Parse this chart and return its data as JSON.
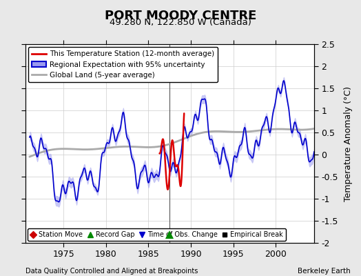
{
  "title": "PORT MOODY CENTRE",
  "subtitle": "49.280 N, 122.850 W (Canada)",
  "ylabel": "Temperature Anomaly (°C)",
  "xlabel_bottom_left": "Data Quality Controlled and Aligned at Breakpoints",
  "xlabel_bottom_right": "Berkeley Earth",
  "ylim": [
    -2.0,
    2.5
  ],
  "xlim": [
    1970.5,
    2004.5
  ],
  "xticks": [
    1975,
    1980,
    1985,
    1990,
    1995,
    2000
  ],
  "yticks": [
    -2.0,
    -1.5,
    -1.0,
    -0.5,
    0.0,
    0.5,
    1.0,
    1.5,
    2.0,
    2.5
  ],
  "ytick_labels": [
    "-2",
    "-1.5",
    "-1",
    "-0.5",
    "0",
    "0.5",
    "1",
    "1.5",
    "2",
    "2.5"
  ],
  "background_color": "#e8e8e8",
  "plot_bg_color": "#ffffff",
  "grid_color": "#cccccc",
  "regional_line_color": "#0000cc",
  "regional_fill_color": "#9999ee",
  "station_line_color": "#dd0000",
  "global_line_color": "#aaaaaa",
  "vertical_line_x": 1987.5,
  "vertical_line_color": "#555555",
  "green_triangle_x": 1987.5,
  "green_triangle_y": -1.82,
  "station_x_start": 1986.3,
  "station_x_end": 1989.2
}
